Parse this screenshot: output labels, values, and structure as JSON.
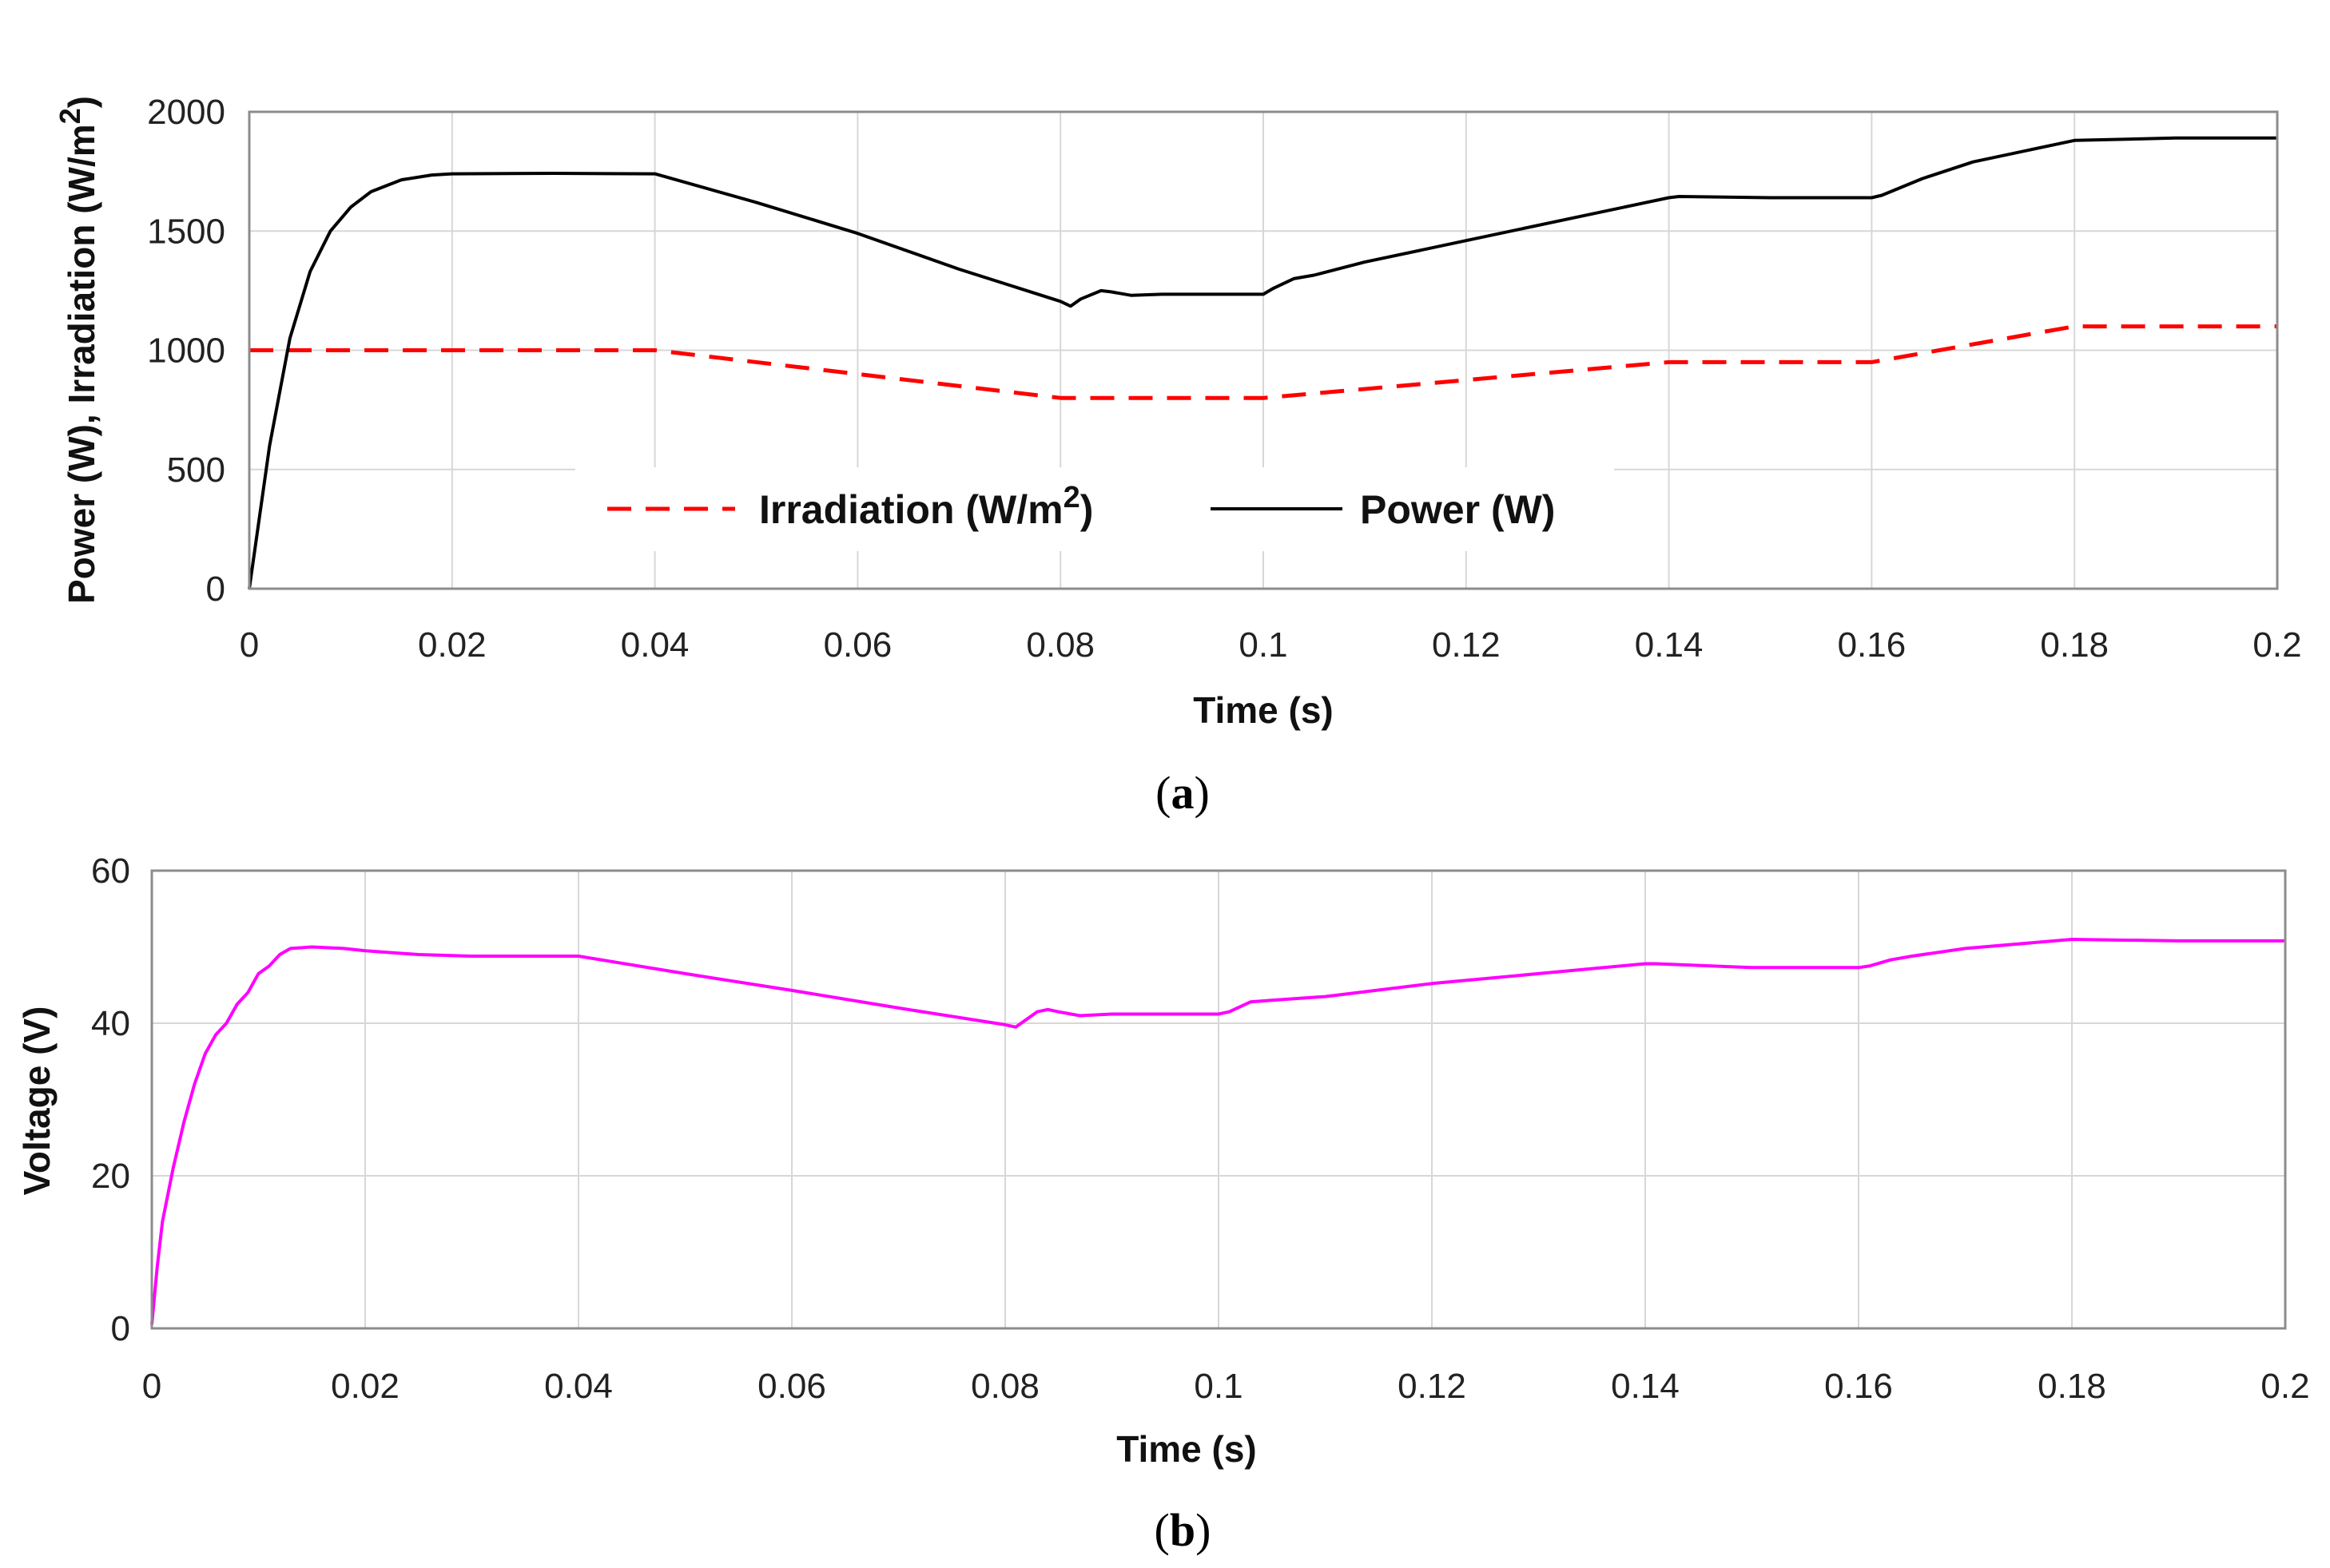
{
  "chart_data": [
    {
      "id": "a",
      "type": "line",
      "panel_label": "a",
      "xlabel": "Time (s)",
      "ylabel": "Power (W), Irradiation (W/m",
      "ylabel_sup": "2",
      "ylabel_close": ")",
      "xlim": [
        0,
        0.2
      ],
      "ylim": [
        0,
        2000
      ],
      "xticks": [
        0,
        0.02,
        0.04,
        0.06,
        0.08,
        0.1,
        0.12,
        0.14,
        0.16,
        0.18,
        0.2
      ],
      "xtick_labels": [
        "0",
        "0.02",
        "0.04",
        "0.06",
        "0.08",
        "0.1",
        "0.12",
        "0.14",
        "0.16",
        "0.18",
        "0.2"
      ],
      "yticks": [
        0,
        500,
        1000,
        1500,
        2000
      ],
      "ytick_labels": [
        "0",
        "500",
        "1000",
        "1500",
        "2000"
      ],
      "grid": true,
      "legend": {
        "position": "center",
        "entries": [
          {
            "label": "Irradiation (W/m",
            "sup": "2",
            "close": ")",
            "series": "Irradiation"
          },
          {
            "label": "Power (W)",
            "series": "Power"
          }
        ]
      },
      "series": [
        {
          "name": "Irradiation",
          "color": "#ff0000",
          "dash": "dashed",
          "x": [
            0,
            0.04,
            0.06,
            0.08,
            0.1,
            0.12,
            0.14,
            0.16,
            0.18,
            0.2
          ],
          "y": [
            1000,
            1000,
            900,
            800,
            800,
            875,
            950,
            950,
            1100,
            1100
          ]
        },
        {
          "name": "Power",
          "color": "#000000",
          "dash": "solid",
          "x": [
            0,
            0.002,
            0.004,
            0.006,
            0.008,
            0.01,
            0.012,
            0.015,
            0.018,
            0.02,
            0.03,
            0.04,
            0.05,
            0.06,
            0.07,
            0.08,
            0.081,
            0.082,
            0.084,
            0.085,
            0.087,
            0.09,
            0.1,
            0.101,
            0.103,
            0.105,
            0.11,
            0.12,
            0.13,
            0.14,
            0.141,
            0.15,
            0.16,
            0.161,
            0.165,
            0.17,
            0.18,
            0.19,
            0.2
          ],
          "y": [
            0,
            600,
            1050,
            1330,
            1500,
            1600,
            1665,
            1715,
            1735,
            1740,
            1742,
            1740,
            1620,
            1490,
            1340,
            1205,
            1185,
            1215,
            1250,
            1245,
            1230,
            1235,
            1235,
            1260,
            1300,
            1315,
            1370,
            1460,
            1550,
            1640,
            1645,
            1640,
            1640,
            1650,
            1720,
            1790,
            1880,
            1890,
            1890
          ]
        }
      ]
    },
    {
      "id": "b",
      "type": "line",
      "panel_label": "b",
      "xlabel": "Time (s)",
      "ylabel": "Voltage (V)",
      "xlim": [
        0,
        0.2
      ],
      "ylim": [
        0,
        60
      ],
      "xticks": [
        0,
        0.02,
        0.04,
        0.06,
        0.08,
        0.1,
        0.12,
        0.14,
        0.16,
        0.18,
        0.2
      ],
      "xtick_labels": [
        "0",
        "0.02",
        "0.04",
        "0.06",
        "0.08",
        "0.1",
        "0.12",
        "0.14",
        "0.16",
        "0.18",
        "0.2"
      ],
      "yticks": [
        0,
        20,
        40,
        60
      ],
      "ytick_labels": [
        "0",
        "20",
        "40",
        "60"
      ],
      "grid": true,
      "series": [
        {
          "name": "Voltage",
          "color": "#ff00ff",
          "dash": "solid",
          "x": [
            0,
            0.0005,
            0.001,
            0.002,
            0.003,
            0.004,
            0.005,
            0.006,
            0.007,
            0.008,
            0.009,
            0.01,
            0.011,
            0.012,
            0.013,
            0.015,
            0.018,
            0.02,
            0.025,
            0.03,
            0.04,
            0.05,
            0.06,
            0.07,
            0.08,
            0.081,
            0.083,
            0.084,
            0.085,
            0.087,
            0.09,
            0.1,
            0.101,
            0.103,
            0.105,
            0.11,
            0.12,
            0.13,
            0.14,
            0.141,
            0.15,
            0.16,
            0.161,
            0.163,
            0.165,
            0.17,
            0.18,
            0.19,
            0.2
          ],
          "y": [
            0.5,
            8,
            14,
            21,
            27,
            32,
            36,
            38.5,
            40,
            42.5,
            44,
            46.5,
            47.5,
            49,
            49.8,
            50,
            49.8,
            49.5,
            49,
            48.8,
            48.8,
            46.5,
            44.3,
            42,
            39.8,
            39.5,
            41.5,
            41.8,
            41.5,
            41,
            41.2,
            41.2,
            41.5,
            42.8,
            43,
            43.5,
            45.2,
            46.5,
            47.8,
            47.8,
            47.3,
            47.3,
            47.5,
            48.3,
            48.8,
            49.8,
            51,
            50.8,
            50.8
          ]
        }
      ]
    }
  ]
}
